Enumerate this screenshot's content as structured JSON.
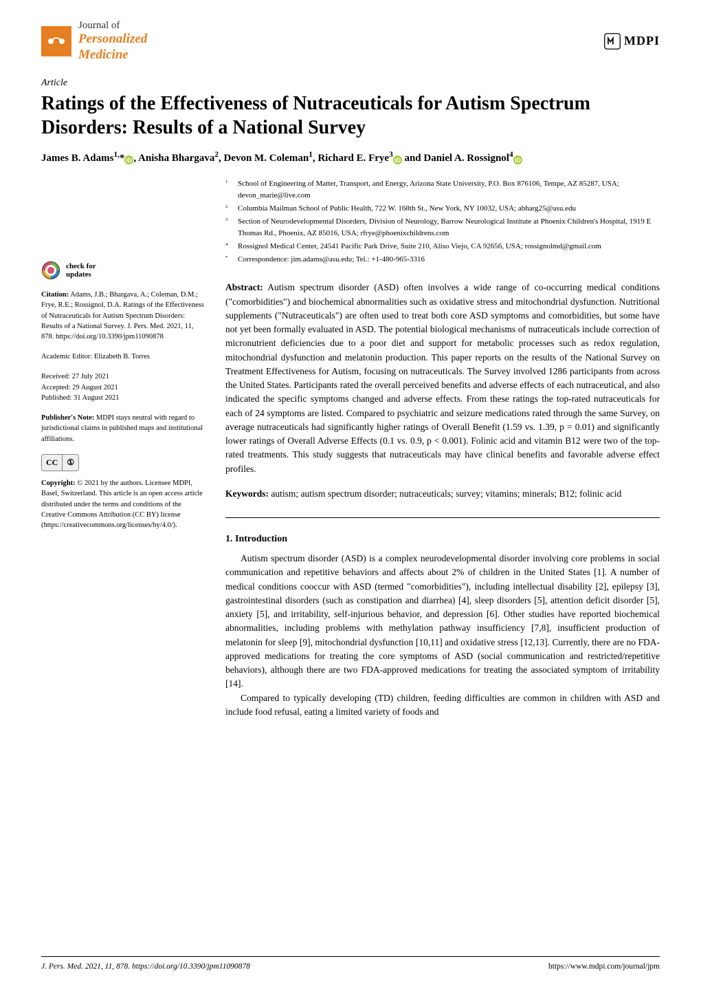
{
  "journal": {
    "top_line": "Journal of",
    "name_italic": "Personalized",
    "name_line2": "Medicine",
    "icon_bg": "#e67e22"
  },
  "publisher_text": "MDPI",
  "article_type": "Article",
  "title": "Ratings of the Effectiveness of Nutraceuticals for Autism Spectrum Disorders: Results of a National Survey",
  "authors_html": "James B. Adams <sup>1,</sup>*",
  "authors": {
    "a1": "James B. Adams",
    "a1_sup": "1,",
    "a1_star": "*",
    "a2": ", Anisha Bhargava",
    "a2_sup": "2",
    "a3": ", Devon M. Coleman",
    "a3_sup": "1",
    "a4": ", Richard E. Frye",
    "a4_sup": "3",
    "a5": " and Daniel A. Rossignol",
    "a5_sup": "4"
  },
  "affiliations": [
    {
      "n": "1",
      "t": "School of Engineering of Matter, Transport, and Energy, Arizona State University, P.O. Box 876106, Tempe, AZ 85287, USA; devon_marie@live.com"
    },
    {
      "n": "2",
      "t": "Columbia Mailman School of Public Health, 722 W. 168th St., New York, NY 10032, USA; abharg25@asu.edu"
    },
    {
      "n": "3",
      "t": "Section of Neurodevelopmental Disorders, Division of Neurology, Barrow Neurological Institute at Phoenix Children's Hospital, 1919 E Thomas Rd., Phoenix, AZ 85016, USA; rfrye@phoenixchildrens.com"
    },
    {
      "n": "4",
      "t": "Rossignol Medical Center, 24541 Pacific Park Drive, Suite 210, Aliso Viejo, CA 92656, USA; rossignolmd@gmail.com"
    },
    {
      "n": "*",
      "t": "Correspondence: jim.adams@asu.edu; Tel.: +1-480-965-3316"
    }
  ],
  "abstract_label": "Abstract:",
  "abstract": " Autism spectrum disorder (ASD) often involves a wide range of co-occurring medical conditions (\"comorbidities\") and biochemical abnormalities such as oxidative stress and mitochondrial dysfunction. Nutritional supplements (\"Nutraceuticals\") are often used to treat both core ASD symptoms and comorbidities, but some have not yet been formally evaluated in ASD. The potential biological mechanisms of nutraceuticals include correction of micronutrient deficiencies due to a poor diet and support for metabolic processes such as redox regulation, mitochondrial dysfunction and melatonin production. This paper reports on the results of the National Survey on Treatment Effectiveness for Autism, focusing on nutraceuticals. The Survey involved 1286 participants from across the United States. Participants rated the overall perceived benefits and adverse effects of each nutraceutical, and also indicated the specific symptoms changed and adverse effects. From these ratings the top-rated nutraceuticals for each of 24 symptoms are listed. Compared to psychiatric and seizure medications rated through the same Survey, on average nutraceuticals had significantly higher ratings of Overall Benefit (1.59 vs. 1.39, p = 0.01) and significantly lower ratings of Overall Adverse Effects (0.1 vs. 0.9, p < 0.001). Folinic acid and vitamin B12 were two of the top-rated treatments. This study suggests that nutraceuticals may have clinical benefits and favorable adverse effect profiles.",
  "keywords_label": "Keywords:",
  "keywords": " autism; autism spectrum disorder; nutraceuticals; survey; vitamins; minerals; B12; folinic acid",
  "section1_heading": "1. Introduction",
  "intro_p1": "Autism spectrum disorder (ASD) is a complex neurodevelopmental disorder involving core problems in social communication and repetitive behaviors and affects about 2% of children in the United States [1]. A number of medical conditions cooccur with ASD (termed \"comorbidities\"), including intellectual disability [2], epilepsy [3], gastrointestinal disorders (such as constipation and diarrhea) [4], sleep disorders [5], attention deficit disorder [5], anxiety [5], and irritability, self-injurious behavior, and depression [6]. Other studies have reported biochemical abnormalities, including problems with methylation pathway insufficiency [7,8], insufficient production of melatonin for sleep [9], mitochondrial dysfunction [10,11] and oxidative stress [12,13]. Currently, there are no FDA-approved medications for treating the core symptoms of ASD (social communication and restricted/repetitive behaviors), although there are two FDA-approved medications for treating the associated symptom of irritability [14].",
  "intro_p2": "Compared to typically developing (TD) children, feeding difficulties are common in children with ASD and include food refusal, eating a limited variety of foods and",
  "left_sidebar": {
    "check_updates": "check for",
    "check_updates2": "updates",
    "citation_label": "Citation:",
    "citation": " Adams, J.B.; Bhargava, A.; Coleman, D.M.; Frye, R.E.; Rossignol, D.A. Ratings of the Effectiveness of Nutraceuticals for Autism Spectrum Disorders: Results of a National Survey. J. Pers. Med. 2021, 11, 878. https://doi.org/10.3390/jpm11090878",
    "editor_label": "Academic Editor:",
    "editor": " Elizabeth B. Torres",
    "received": "Received: 27 July 2021",
    "accepted": "Accepted: 29 August 2021",
    "published": "Published: 31 August 2021",
    "pubnote_label": "Publisher's Note:",
    "pubnote": " MDPI stays neutral with regard to jurisdictional claims in published maps and institutional affiliations.",
    "copyright_label": "Copyright:",
    "copyright": " © 2021 by the authors. Licensee MDPI, Basel, Switzerland. This article is an open access article distributed under the terms and conditions of the Creative Commons Attribution (CC BY) license (https://creativecommons.org/licenses/by/4.0/)."
  },
  "footer": {
    "left": "J. Pers. Med. 2021, 11, 878. https://doi.org/10.3390/jpm11090878",
    "right": "https://www.mdpi.com/journal/jpm"
  },
  "colors": {
    "brand": "#e67e22",
    "link": "#1a5490",
    "orcid": "#a6ce39",
    "text": "#000000",
    "bg": "#ffffff"
  }
}
